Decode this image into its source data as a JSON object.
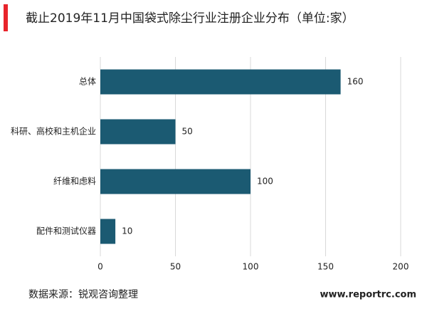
{
  "chart_data": {
    "type": "bar",
    "orientation": "horizontal",
    "title": "截止2019年11月中国袋式除尘行业注册企业分布（单位:家）",
    "categories": [
      "总体",
      "科研、高校和主机企业",
      "纤维和虑料",
      "配件和测试仪器"
    ],
    "values": [
      160,
      50,
      100,
      10
    ],
    "color": "#1b5a72",
    "xlim": [
      0,
      200
    ],
    "xticks": [
      0,
      50,
      100,
      150,
      200
    ],
    "grid": true,
    "source": "数据来源：锐观咨询整理",
    "website": "www.reportrc.com"
  }
}
